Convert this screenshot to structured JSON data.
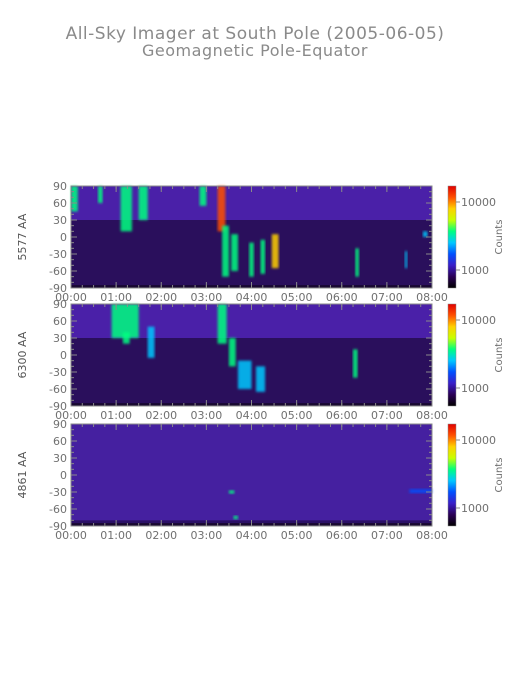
{
  "chart_data": {
    "type": "heatmap",
    "title": "All-Sky Imager at South Pole (2005-06-05)",
    "subtitle": "Geomagnetic Pole-Equator",
    "x_ticks": [
      "00:00",
      "01:00",
      "02:00",
      "03:00",
      "04:00",
      "05:00",
      "06:00",
      "07:00",
      "08:00"
    ],
    "x_range_hours": [
      0,
      8
    ],
    "y_ticks": [
      "90",
      "60",
      "30",
      "0",
      "-30",
      "-60",
      "-90"
    ],
    "y_range_deg": [
      -90,
      90
    ],
    "colorbar": {
      "label": "Counts",
      "ticks": [
        "10000",
        "1000"
      ],
      "colors": [
        "#000000",
        "#2a0055",
        "#3a1ec8",
        "#0050ff",
        "#00c8ff",
        "#00ff80",
        "#c8ff00",
        "#ffd000",
        "#ff5000",
        "#e00000"
      ]
    },
    "panels": [
      {
        "ylabel": "5577 AA",
        "bands": [
          {
            "t0": 0.0,
            "t1": 0.15,
            "lat0": 45,
            "lat1": 90,
            "level": 0.55
          },
          {
            "t0": 0.6,
            "t1": 0.7,
            "lat0": 60,
            "lat1": 90,
            "level": 0.6
          },
          {
            "t0": 1.1,
            "t1": 1.35,
            "lat0": 10,
            "lat1": 90,
            "level": 0.55
          },
          {
            "t0": 1.5,
            "t1": 1.7,
            "lat0": 30,
            "lat1": 90,
            "level": 0.5
          },
          {
            "t0": 2.85,
            "t1": 3.0,
            "lat0": 55,
            "lat1": 90,
            "level": 0.55
          },
          {
            "t0": 3.25,
            "t1": 3.42,
            "lat0": 10,
            "lat1": 90,
            "level": 0.85
          },
          {
            "t0": 3.35,
            "t1": 3.5,
            "lat0": -70,
            "lat1": 20,
            "level": 0.6
          },
          {
            "t0": 3.55,
            "t1": 3.7,
            "lat0": -60,
            "lat1": 5,
            "level": 0.55
          },
          {
            "t0": 3.95,
            "t1": 4.05,
            "lat0": -70,
            "lat1": -10,
            "level": 0.55
          },
          {
            "t0": 4.2,
            "t1": 4.3,
            "lat0": -65,
            "lat1": -5,
            "level": 0.55
          },
          {
            "t0": 4.45,
            "t1": 4.6,
            "lat0": -55,
            "lat1": 5,
            "level": 0.75
          },
          {
            "t0": 6.3,
            "t1": 6.38,
            "lat0": -70,
            "lat1": -20,
            "level": 0.5
          },
          {
            "t0": 7.4,
            "t1": 7.45,
            "lat0": -55,
            "lat1": -25,
            "level": 0.4
          },
          {
            "t0": 7.8,
            "t1": 7.9,
            "lat0": 0,
            "lat1": 10,
            "level": 0.45
          }
        ]
      },
      {
        "ylabel": "6300 AA",
        "bands": [
          {
            "t0": 0.9,
            "t1": 1.5,
            "lat0": 30,
            "lat1": 90,
            "level": 0.5
          },
          {
            "t0": 1.15,
            "t1": 1.3,
            "lat0": 20,
            "lat1": 40,
            "level": 0.55
          },
          {
            "t0": 1.7,
            "t1": 1.85,
            "lat0": -5,
            "lat1": 50,
            "level": 0.45
          },
          {
            "t0": 3.25,
            "t1": 3.45,
            "lat0": 20,
            "lat1": 90,
            "level": 0.6
          },
          {
            "t0": 3.5,
            "t1": 3.65,
            "lat0": -20,
            "lat1": 30,
            "level": 0.55
          },
          {
            "t0": 3.7,
            "t1": 4.0,
            "lat0": -60,
            "lat1": -10,
            "level": 0.45
          },
          {
            "t0": 4.1,
            "t1": 4.3,
            "lat0": -65,
            "lat1": -20,
            "level": 0.45
          },
          {
            "t0": 6.25,
            "t1": 6.35,
            "lat0": -40,
            "lat1": 10,
            "level": 0.5
          }
        ]
      },
      {
        "ylabel": "4861 AA",
        "bands": [
          {
            "t0": 3.5,
            "t1": 3.62,
            "lat0": -33,
            "lat1": -27,
            "level": 0.55
          },
          {
            "t0": 3.6,
            "t1": 3.7,
            "lat0": -78,
            "lat1": -72,
            "level": 0.5
          },
          {
            "t0": 7.5,
            "t1": 8.0,
            "lat0": -32,
            "lat1": -25,
            "level": 0.3
          }
        ]
      }
    ]
  }
}
